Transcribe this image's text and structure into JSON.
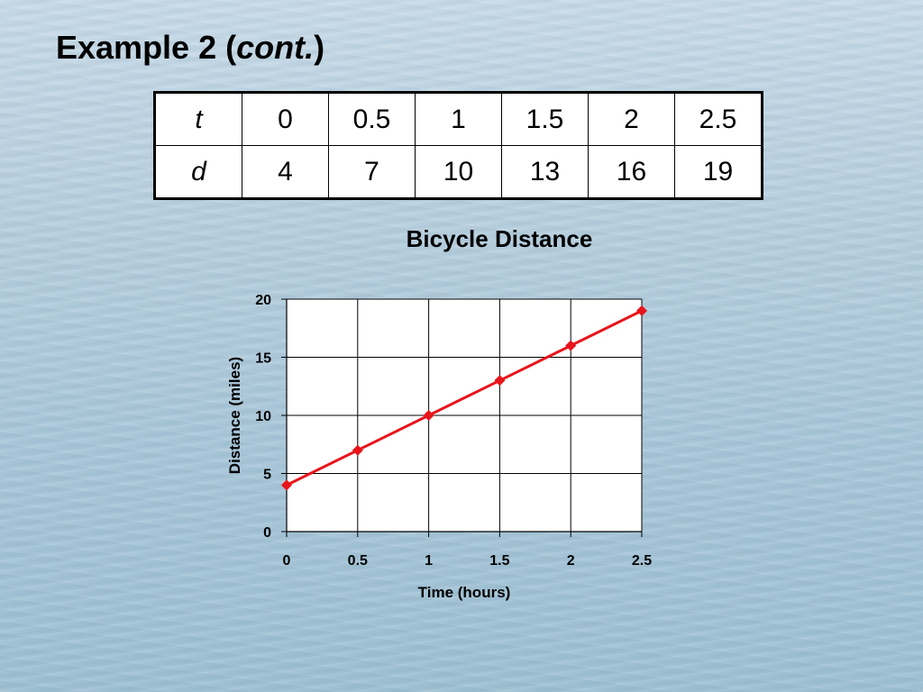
{
  "slide": {
    "title_prefix": "Example 2 (",
    "title_emphasis": "cont.",
    "title_suffix": ")"
  },
  "table": {
    "rows": [
      {
        "label": "t",
        "values": [
          "0",
          "0.5",
          "1",
          "1.5",
          "2",
          "2.5"
        ]
      },
      {
        "label": "d",
        "values": [
          "4",
          "7",
          "10",
          "13",
          "16",
          "19"
        ]
      }
    ]
  },
  "chart_data": {
    "type": "line",
    "title": "Bicycle Distance",
    "xlabel": "Time (hours)",
    "ylabel": "Distance (miles)",
    "x": [
      0,
      0.5,
      1,
      1.5,
      2,
      2.5
    ],
    "xticks": [
      "0",
      "0.5",
      "1",
      "1.5",
      "2",
      "2.5"
    ],
    "yticks": [
      "0",
      "5",
      "10",
      "15",
      "20"
    ],
    "xlim": [
      0,
      2.5
    ],
    "ylim": [
      0,
      20
    ],
    "grid": true,
    "marker": "diamond",
    "series": [
      {
        "values": [
          4,
          7,
          10,
          13,
          16,
          19
        ],
        "color": "#e8141b"
      }
    ]
  }
}
